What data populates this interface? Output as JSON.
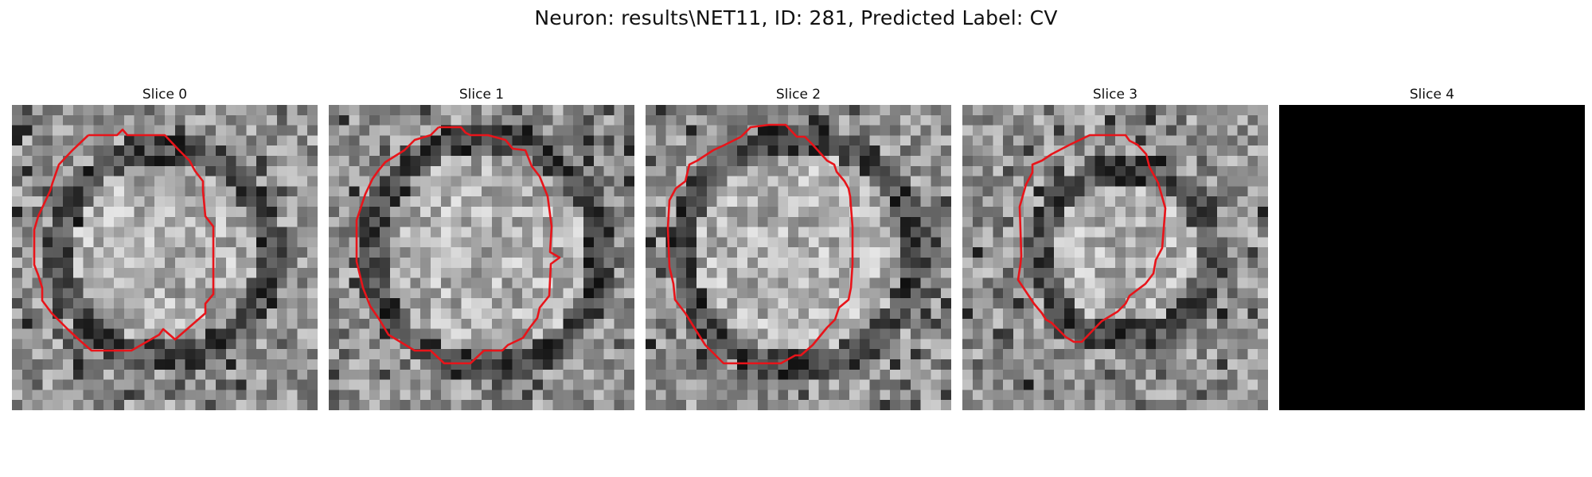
{
  "title": "Neuron: results\\NET11, ID: 281, Predicted Label: CV",
  "panels": [
    {
      "label": "Slice 0",
      "blank": false
    },
    {
      "label": "Slice 1",
      "blank": false
    },
    {
      "label": "Slice 2",
      "blank": false
    },
    {
      "label": "Slice 3",
      "blank": false
    },
    {
      "label": "Slice 4",
      "blank": true
    }
  ],
  "colors": {
    "contour": "#e8141a",
    "background": "#ffffff",
    "blank_slice": "#000000"
  }
}
